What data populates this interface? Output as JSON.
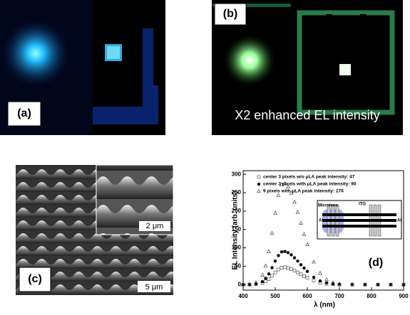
{
  "panels": {
    "a": {
      "label": "(a)"
    },
    "b": {
      "label": "(b)",
      "caption": "X2 enhanced EL intensity"
    },
    "c": {
      "label": "(c)",
      "inset_scale": "2 μm",
      "scale": "5 μm"
    },
    "d": {
      "label": "(d)",
      "inset": {
        "microlens": "Microlens",
        "ito": "ITO",
        "al_left": "Al",
        "al_right": "Al"
      }
    }
  },
  "chart_data": {
    "type": "scatter",
    "x_label": "λ (nm)",
    "y_label": "EL Intensity (arb. units)",
    "x": [
      400,
      420,
      440,
      460,
      470,
      480,
      490,
      500,
      510,
      520,
      530,
      540,
      550,
      560,
      570,
      580,
      590,
      600,
      620,
      640,
      660,
      680,
      700,
      740,
      780,
      820,
      860,
      900
    ],
    "series": [
      {
        "name": "center 3 pixels w/o μLA peak intensity: 47",
        "marker": "square",
        "color": "#555555",
        "values": [
          0,
          0,
          1,
          4,
          9,
          15,
          24,
          33,
          41,
          46,
          47,
          45,
          42,
          38,
          33,
          28,
          23,
          19,
          11,
          5,
          2,
          1,
          0,
          0,
          0,
          0,
          0,
          0
        ]
      },
      {
        "name": "center 3 pixels with μLA peak intensity: 90",
        "marker": "circle",
        "color": "#000000",
        "values": [
          0,
          0,
          2,
          8,
          17,
          29,
          46,
          64,
          79,
          89,
          90,
          87,
          81,
          73,
          64,
          54,
          45,
          36,
          20,
          10,
          5,
          2,
          1,
          0,
          0,
          0,
          0,
          0
        ]
      },
      {
        "name": "9 pixels with μLA peak intensity: 276",
        "marker": "triangle",
        "color": "#444444",
        "values": [
          0,
          1,
          5,
          26,
          51,
          90,
          140,
          195,
          243,
          272,
          275,
          266,
          249,
          225,
          197,
          167,
          137,
          109,
          62,
          31,
          14,
          5,
          2,
          1,
          0,
          0,
          0,
          0
        ]
      }
    ],
    "xlim": [
      400,
      900
    ],
    "xticks": [
      400,
      500,
      600,
      700,
      800,
      900
    ],
    "ylim": [
      -15,
      310
    ],
    "yticks": [
      0,
      50,
      100,
      150,
      200,
      250,
      300
    ],
    "legend": "upper center",
    "grid": false
  }
}
